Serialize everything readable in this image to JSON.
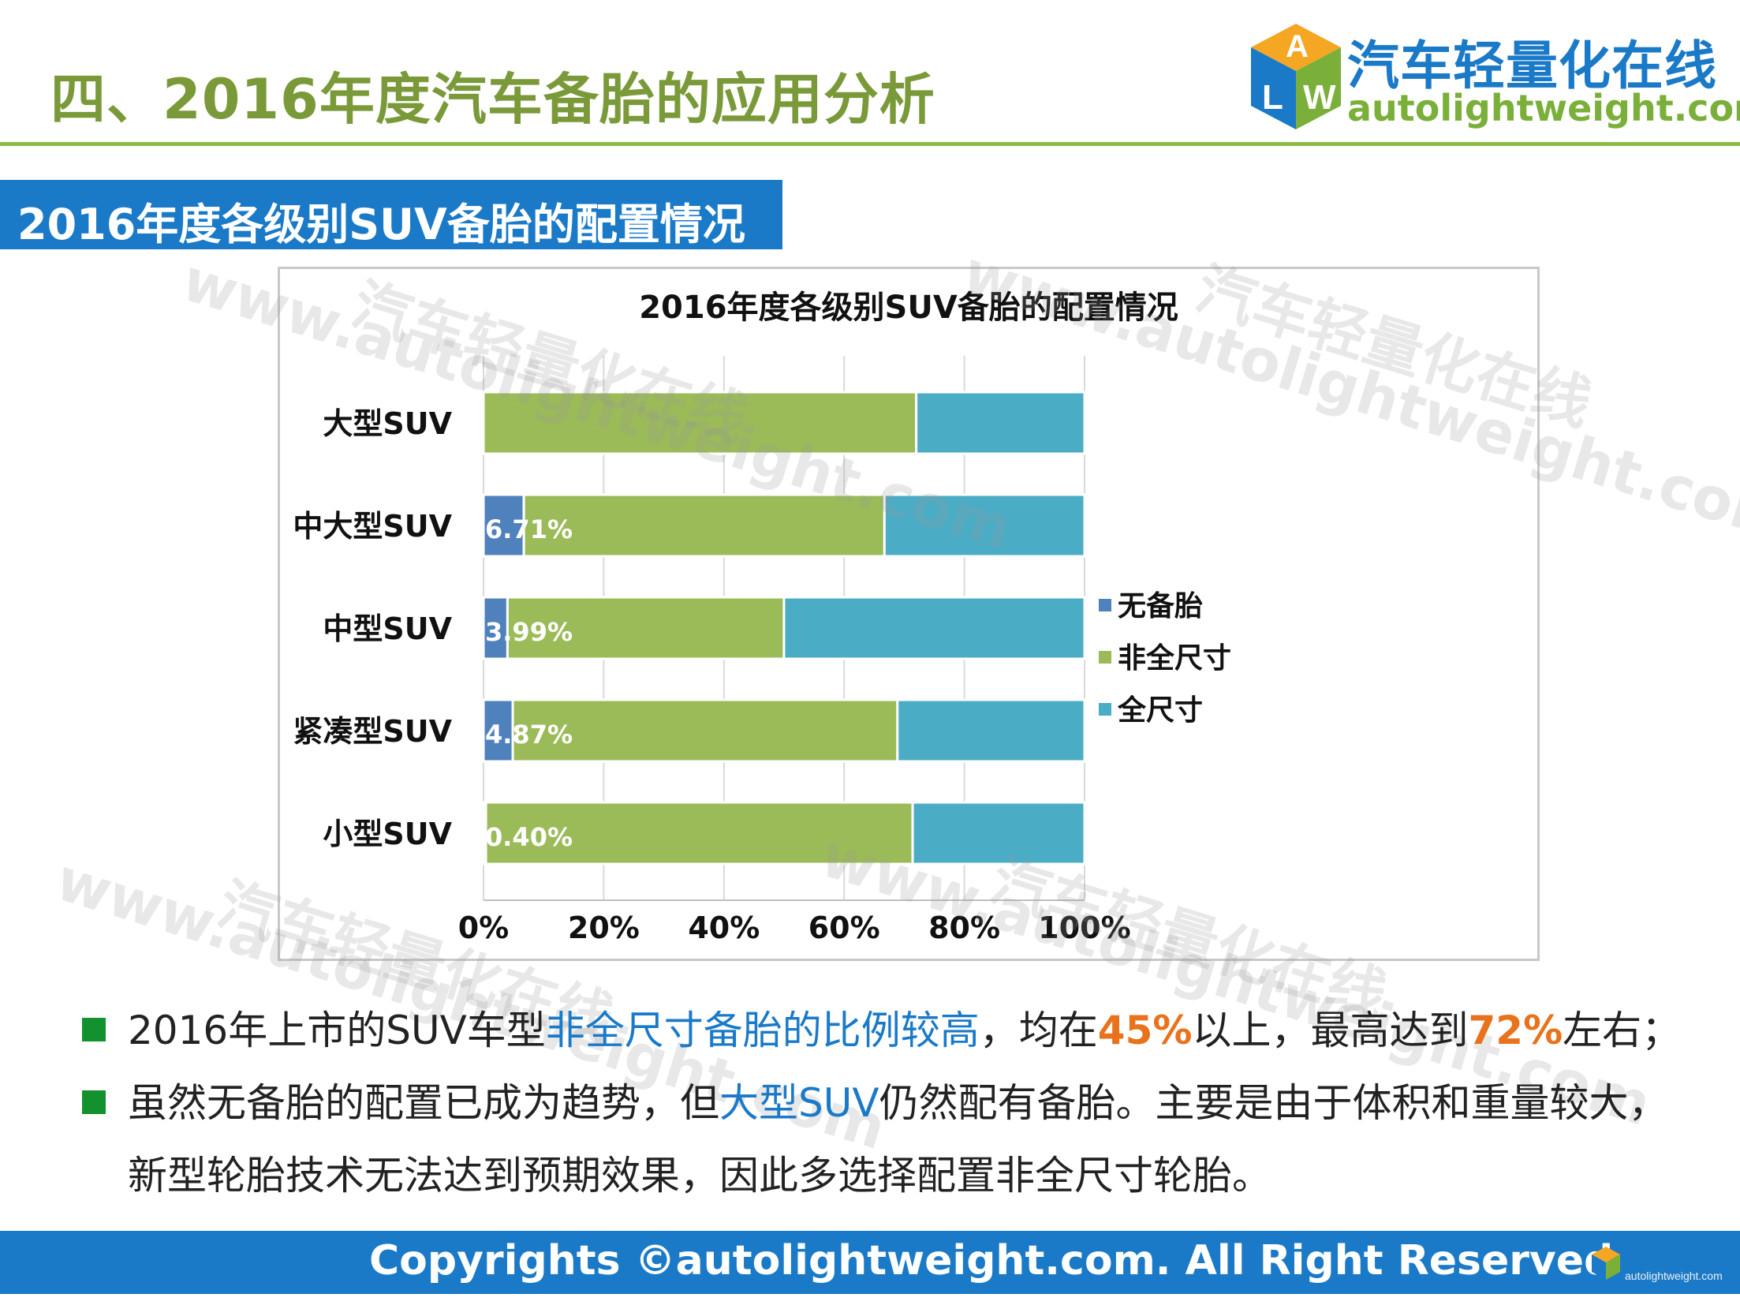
{
  "header": {
    "title": "四、2016年度汽车备胎的应用分析",
    "logo_cn": "汽车轻量化在线",
    "logo_en": "autolightweight.com"
  },
  "section": {
    "title": "2016年度各级别SUV备胎的配置情况"
  },
  "watermark": {
    "cn": "汽车轻量化在线",
    "en": "www.autolightweight.com"
  },
  "chart_data": {
    "type": "bar",
    "orientation": "horizontal",
    "stacked": "percent",
    "title": "2016年度各级别SUV备胎的配置情况",
    "categories": [
      "大型SUV",
      "中大型SUV",
      "中型SUV",
      "紧凑型SUV",
      "小型SUV"
    ],
    "series": [
      {
        "name": "无备胎",
        "color": "#4f81bd",
        "values": [
          0.0,
          6.71,
          3.99,
          4.87,
          0.4
        ],
        "labels": [
          "",
          "6.71%",
          "3.99%",
          "4.87%",
          "0.40%"
        ]
      },
      {
        "name": "非全尺寸",
        "color": "#9bbb59",
        "values": [
          72.0,
          60.0,
          46.0,
          64.0,
          71.0
        ]
      },
      {
        "name": "全尺寸",
        "color": "#4bacc6",
        "values": [
          28.0,
          33.29,
          50.01,
          31.13,
          28.6
        ]
      }
    ],
    "xticks": [
      "0%",
      "20%",
      "40%",
      "60%",
      "80%",
      "100%"
    ],
    "xlim": [
      0,
      100
    ],
    "grid": true,
    "legend_position": "right"
  },
  "bullets": [
    [
      {
        "text": "2016年上市的SUV车型",
        "style": "normal"
      },
      {
        "text": "非全尺寸备胎的比例较高",
        "style": "blue"
      },
      {
        "text": "，均在",
        "style": "normal"
      },
      {
        "text": "45%",
        "style": "orange"
      },
      {
        "text": "以上，最高达到",
        "style": "normal"
      },
      {
        "text": "72%",
        "style": "orange"
      },
      {
        "text": "左右；",
        "style": "normal"
      }
    ],
    [
      {
        "text": "虽然无备胎的配置已成为趋势，但",
        "style": "normal"
      },
      {
        "text": "大型SUV",
        "style": "blue"
      },
      {
        "text": "仍然配有备胎。主要是由于体积和重量较大，",
        "style": "normal"
      }
    ],
    [
      {
        "text": "新型轮胎技术无法达到预期效果，因此多选择配置非全尺寸轮胎。",
        "style": "normal"
      }
    ]
  ],
  "footer": {
    "text": "Copyrights ©autolightweight.com. All Right Reserved",
    "logo_text": "autolightweight.com"
  }
}
